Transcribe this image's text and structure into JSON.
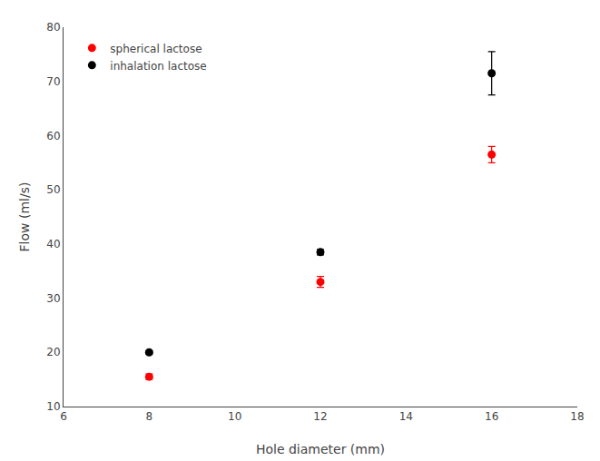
{
  "chart_data": {
    "type": "scatter",
    "xlabel": "Hole diameter (mm)",
    "ylabel": "Flow (ml/s)",
    "x": [
      8,
      12,
      16
    ],
    "series": [
      {
        "name": "spherical lactose",
        "color": "#ff0000",
        "marker": "circle",
        "values": [
          15.5,
          33.0,
          56.5
        ],
        "yerr": [
          0.5,
          1.0,
          1.5
        ]
      },
      {
        "name": "inhalation lactose",
        "color": "#000000",
        "marker": "circle",
        "values": [
          20.0,
          38.5,
          71.5
        ],
        "yerr": [
          0.3,
          0.5,
          4.0
        ]
      }
    ],
    "xlim": [
      6,
      18
    ],
    "ylim": [
      10,
      80
    ],
    "xticks": [
      6,
      8,
      10,
      12,
      14,
      16,
      18
    ],
    "yticks": [
      10,
      20,
      30,
      40,
      50,
      60,
      70,
      80
    ],
    "grid": false,
    "legend": "upper left"
  }
}
